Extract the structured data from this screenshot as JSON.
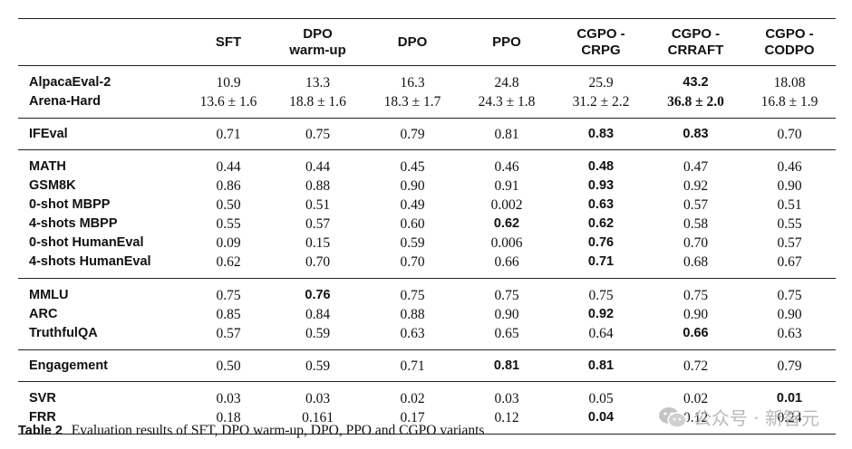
{
  "table": {
    "headers": [
      {
        "line1": "",
        "line2": ""
      },
      {
        "line1": "SFT",
        "line2": ""
      },
      {
        "line1": "DPO",
        "line2": "warm-up"
      },
      {
        "line1": "DPO",
        "line2": ""
      },
      {
        "line1": "PPO",
        "line2": ""
      },
      {
        "line1": "CGPO -",
        "line2": "CRPG"
      },
      {
        "line1": "CGPO -",
        "line2": "CRRAFT"
      },
      {
        "line1": "CGPO -",
        "line2": "CODPO"
      }
    ],
    "groups": [
      {
        "rows": [
          {
            "name": "AlpacaEval-2",
            "cells": [
              "10.9",
              "13.3",
              "16.3",
              "24.8",
              "25.9",
              "43.2",
              "18.08"
            ],
            "bold": [
              false,
              false,
              false,
              false,
              false,
              true,
              false
            ]
          },
          {
            "name": "Arena-Hard",
            "cells": [
              "13.6 ± 1.6",
              "18.8 ± 1.6",
              "18.3 ± 1.7",
              "24.3 ± 1.8",
              "31.2 ± 2.2",
              "36.8 ± 2.0",
              "16.8 ± 1.9"
            ],
            "bold": [
              false,
              false,
              false,
              false,
              false,
              true,
              false
            ]
          }
        ]
      },
      {
        "rows": [
          {
            "name": "IFEval",
            "cells": [
              "0.71",
              "0.75",
              "0.79",
              "0.81",
              "0.83",
              "0.83",
              "0.70"
            ],
            "bold": [
              false,
              false,
              false,
              false,
              true,
              true,
              false
            ]
          }
        ]
      },
      {
        "rows": [
          {
            "name": "MATH",
            "cells": [
              "0.44",
              "0.44",
              "0.45",
              "0.46",
              "0.48",
              "0.47",
              "0.46"
            ],
            "bold": [
              false,
              false,
              false,
              false,
              true,
              false,
              false
            ]
          },
          {
            "name": "GSM8K",
            "cells": [
              "0.86",
              "0.88",
              "0.90",
              "0.91",
              "0.93",
              "0.92",
              "0.90"
            ],
            "bold": [
              false,
              false,
              false,
              false,
              true,
              false,
              false
            ]
          },
          {
            "name": "0-shot MBPP",
            "cells": [
              "0.50",
              "0.51",
              "0.49",
              "0.002",
              "0.63",
              "0.57",
              "0.51"
            ],
            "bold": [
              false,
              false,
              false,
              false,
              true,
              false,
              false
            ]
          },
          {
            "name": "4-shots MBPP",
            "cells": [
              "0.55",
              "0.57",
              "0.60",
              "0.62",
              "0.62",
              "0.58",
              "0.55"
            ],
            "bold": [
              false,
              false,
              false,
              true,
              true,
              false,
              false
            ]
          },
          {
            "name": "0-shot HumanEval",
            "cells": [
              "0.09",
              "0.15",
              "0.59",
              "0.006",
              "0.76",
              "0.70",
              "0.57"
            ],
            "bold": [
              false,
              false,
              false,
              false,
              true,
              false,
              false
            ]
          },
          {
            "name": "4-shots HumanEval",
            "cells": [
              "0.62",
              "0.70",
              "0.70",
              "0.66",
              "0.71",
              "0.68",
              "0.67"
            ],
            "bold": [
              false,
              false,
              false,
              false,
              true,
              false,
              false
            ]
          }
        ]
      },
      {
        "rows": [
          {
            "name": "MMLU",
            "cells": [
              "0.75",
              "0.76",
              "0.75",
              "0.75",
              "0.75",
              "0.75",
              "0.75"
            ],
            "bold": [
              false,
              true,
              false,
              false,
              false,
              false,
              false
            ]
          },
          {
            "name": "ARC",
            "cells": [
              "0.85",
              "0.84",
              "0.88",
              "0.90",
              "0.92",
              "0.90",
              "0.90"
            ],
            "bold": [
              false,
              false,
              false,
              false,
              true,
              false,
              false
            ]
          },
          {
            "name": "TruthfulQA",
            "cells": [
              "0.57",
              "0.59",
              "0.63",
              "0.65",
              "0.64",
              "0.66",
              "0.63"
            ],
            "bold": [
              false,
              false,
              false,
              false,
              false,
              true,
              false
            ]
          }
        ]
      },
      {
        "rows": [
          {
            "name": "Engagement",
            "cells": [
              "0.50",
              "0.59",
              "0.71",
              "0.81",
              "0.81",
              "0.72",
              "0.79"
            ],
            "bold": [
              false,
              false,
              false,
              true,
              true,
              false,
              false
            ]
          }
        ]
      },
      {
        "rows": [
          {
            "name": "SVR",
            "cells": [
              "0.03",
              "0.03",
              "0.02",
              "0.03",
              "0.05",
              "0.02",
              "0.01"
            ],
            "bold": [
              false,
              false,
              false,
              false,
              false,
              false,
              true
            ]
          },
          {
            "name": "FRR",
            "cells": [
              "0.18",
              "0.161",
              "0.17",
              "0.12",
              "0.04",
              "0.12",
              "0.24"
            ],
            "bold": [
              false,
              false,
              false,
              false,
              true,
              false,
              false
            ]
          }
        ]
      }
    ]
  },
  "caption": {
    "label": "Table 2",
    "text": "Evaluation results of SFT, DPO warm-up, DPO, PPO and CGPO variants"
  },
  "watermark": {
    "text": "公众号 · 新智元",
    "icon": "wechat-icon",
    "color": "#b9b9b9"
  }
}
